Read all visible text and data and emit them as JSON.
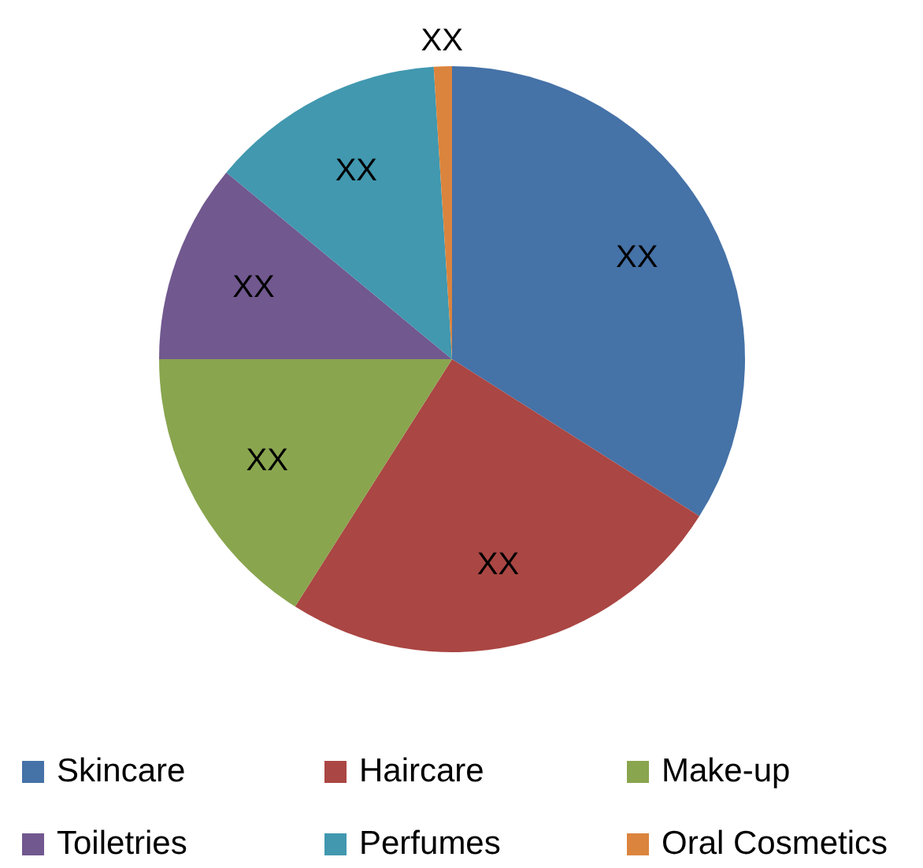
{
  "chart_data": {
    "type": "pie",
    "categories": [
      "Skincare",
      "Haircare",
      "Make-up",
      "Toiletries",
      "Perfumes",
      "Oral Cosmetics"
    ],
    "values": [
      34,
      25,
      16,
      11,
      13,
      1
    ],
    "colors": [
      "#4572a7",
      "#aa4643",
      "#89a54e",
      "#71588f",
      "#4198af",
      "#db843d"
    ],
    "value_labels": [
      "XX",
      "XX",
      "XX",
      "XX",
      "XX",
      "XX"
    ],
    "legend": "bottom"
  }
}
